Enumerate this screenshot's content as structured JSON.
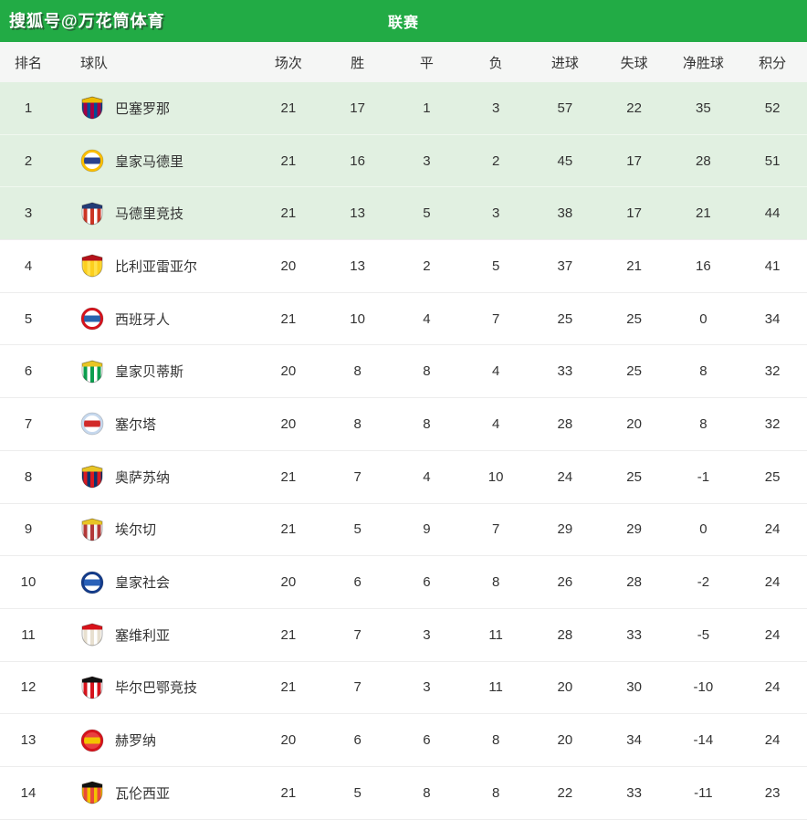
{
  "watermark": "搜狐号@万花筒体育",
  "title": "联赛",
  "colors": {
    "bar_green": "#22ab45",
    "highlight_row": "#e1f0e1",
    "header_bg": "#f5f6f5",
    "text": "#333333",
    "divider": "#ededed"
  },
  "table": {
    "headers": [
      "排名",
      "球队",
      "场次",
      "胜",
      "平",
      "负",
      "进球",
      "失球",
      "净胜球",
      "积分"
    ],
    "teams": [
      {
        "rank": 1,
        "name": "巴塞罗那",
        "icon": "barcelona-crest-icon",
        "highlight": true,
        "badge": {
          "shape": "shield",
          "c1": "#a50044",
          "c2": "#004d98",
          "c3": "#edbb00"
        },
        "stats": [
          21,
          17,
          1,
          3,
          57,
          22,
          35,
          52
        ]
      },
      {
        "rank": 2,
        "name": "皇家马德里",
        "icon": "real-madrid-crest-icon",
        "highlight": true,
        "badge": {
          "shape": "circle",
          "c1": "#fcbf00",
          "c2": "#ffffff",
          "c3": "#29418d"
        },
        "stats": [
          21,
          16,
          3,
          2,
          45,
          17,
          28,
          51
        ]
      },
      {
        "rank": 3,
        "name": "马德里竞技",
        "icon": "atletico-madrid-crest-icon",
        "highlight": true,
        "badge": {
          "shape": "shield",
          "c1": "#cb3524",
          "c2": "#ffffff",
          "c3": "#223c77"
        },
        "stats": [
          21,
          13,
          5,
          3,
          38,
          17,
          21,
          44
        ]
      },
      {
        "rank": 4,
        "name": "比利亚雷亚尔",
        "icon": "villarreal-crest-icon",
        "highlight": false,
        "badge": {
          "shape": "shield",
          "c1": "#fccf1e",
          "c2": "#ffe14d",
          "c3": "#b5121b"
        },
        "stats": [
          20,
          13,
          2,
          5,
          37,
          21,
          16,
          41
        ]
      },
      {
        "rank": 5,
        "name": "西班牙人",
        "icon": "espanyol-crest-icon",
        "highlight": false,
        "badge": {
          "shape": "circle",
          "c1": "#d6131c",
          "c2": "#ffffff",
          "c3": "#2864ae"
        },
        "stats": [
          21,
          10,
          4,
          7,
          25,
          25,
          0,
          34
        ]
      },
      {
        "rank": 6,
        "name": "皇家贝蒂斯",
        "icon": "real-betis-crest-icon",
        "highlight": false,
        "badge": {
          "shape": "shield",
          "c1": "#0b9e4e",
          "c2": "#ffffff",
          "c3": "#e8c525"
        },
        "stats": [
          20,
          8,
          8,
          4,
          33,
          25,
          8,
          32
        ]
      },
      {
        "rank": 7,
        "name": "塞尔塔",
        "icon": "celta-vigo-crest-icon",
        "highlight": false,
        "badge": {
          "shape": "circle",
          "c1": "#c7d9ee",
          "c2": "#ffffff",
          "c3": "#d12a2a"
        },
        "stats": [
          20,
          8,
          8,
          4,
          28,
          20,
          8,
          32
        ]
      },
      {
        "rank": 8,
        "name": "奥萨苏纳",
        "icon": "osasuna-crest-icon",
        "highlight": false,
        "badge": {
          "shape": "shield",
          "c1": "#d91a21",
          "c2": "#0a346f",
          "c3": "#e8c525"
        },
        "stats": [
          21,
          7,
          4,
          10,
          24,
          25,
          -1,
          25
        ]
      },
      {
        "rank": 9,
        "name": "埃尔切",
        "icon": "elche-crest-icon",
        "highlight": false,
        "badge": {
          "shape": "shield",
          "c1": "#b33939",
          "c2": "#f2f2f2",
          "c3": "#e8c525"
        },
        "stats": [
          21,
          5,
          9,
          7,
          29,
          29,
          0,
          24
        ]
      },
      {
        "rank": 10,
        "name": "皇家社会",
        "icon": "real-sociedad-crest-icon",
        "highlight": false,
        "badge": {
          "shape": "circle",
          "c1": "#143c8b",
          "c2": "#ffffff",
          "c3": "#2a61b8"
        },
        "stats": [
          20,
          6,
          6,
          8,
          26,
          28,
          -2,
          24
        ]
      },
      {
        "rank": 11,
        "name": "塞维利亚",
        "icon": "sevilla-crest-icon",
        "highlight": false,
        "badge": {
          "shape": "shield",
          "c1": "#e8e0d0",
          "c2": "#ffffff",
          "c3": "#d8121a"
        },
        "stats": [
          21,
          7,
          3,
          11,
          28,
          33,
          -5,
          24
        ]
      },
      {
        "rank": 12,
        "name": "毕尔巴鄂竞技",
        "icon": "athletic-bilbao-crest-icon",
        "highlight": false,
        "badge": {
          "shape": "shield",
          "c1": "#d6131c",
          "c2": "#ffffff",
          "c3": "#111111"
        },
        "stats": [
          21,
          7,
          3,
          11,
          20,
          30,
          -10,
          24
        ]
      },
      {
        "rank": 13,
        "name": "赫罗纳",
        "icon": "girona-crest-icon",
        "highlight": false,
        "badge": {
          "shape": "circle",
          "c1": "#d6131c",
          "c2": "#e94040",
          "c3": "#f3c300"
        },
        "stats": [
          20,
          6,
          6,
          8,
          20,
          34,
          -14,
          24
        ]
      },
      {
        "rank": 14,
        "name": "瓦伦西亚",
        "icon": "valencia-crest-icon",
        "highlight": false,
        "badge": {
          "shape": "shield",
          "c1": "#e94a39",
          "c2": "#f3c300",
          "c3": "#111111"
        },
        "stats": [
          21,
          5,
          8,
          8,
          22,
          33,
          -11,
          23
        ]
      }
    ]
  }
}
